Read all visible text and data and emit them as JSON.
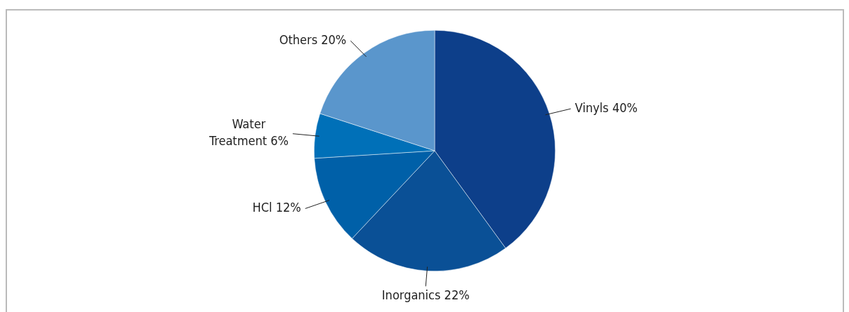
{
  "chart_data": {
    "type": "pie",
    "categories": [
      "Vinyls",
      "Inorganics",
      "HCl",
      "Water Treatment",
      "Others"
    ],
    "values": [
      40,
      22,
      12,
      6,
      20
    ],
    "value_labels": [
      "40%",
      "22%",
      "12%",
      "6%",
      "20%"
    ],
    "colors": [
      "#0d3f8a",
      "#0a5096",
      "#0060a8",
      "#0070b8",
      "#5a96cc"
    ],
    "legend": false
  }
}
